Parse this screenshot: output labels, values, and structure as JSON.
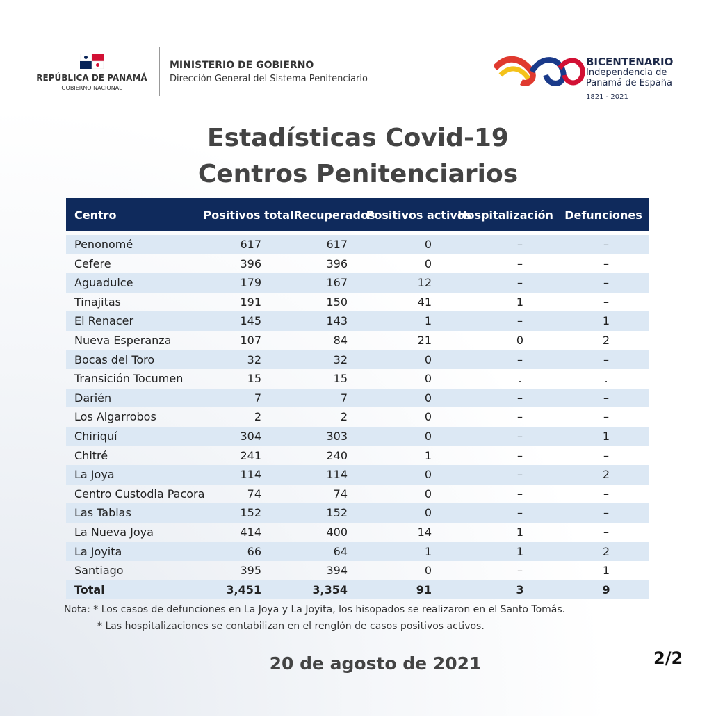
{
  "header": {
    "left_logo": {
      "country": "REPÚBLICA DE PANAMÁ",
      "government": "GOBIERNO NACIONAL"
    },
    "ministry": "MINISTERIO DE GOBIERNO",
    "department": "Dirección General del Sistema Penitenciario",
    "right_logo": {
      "title": "BICENTENARIO",
      "line1": "Independencia de",
      "line2": "Panamá de España",
      "years": "1821 - 2021"
    }
  },
  "title": [
    "Estadísticas Covid-19",
    "Centros Penitenciarios"
  ],
  "table": {
    "columns": [
      "Centro",
      "Positivos total",
      "Recuperados",
      "Positivos activos",
      "Hospitalización",
      "Defunciones"
    ],
    "rows": [
      [
        "Penonomé",
        617,
        617,
        0,
        "–",
        "–"
      ],
      [
        "Cefere",
        396,
        396,
        0,
        "–",
        "–"
      ],
      [
        "Aguadulce",
        179,
        167,
        12,
        "–",
        "–"
      ],
      [
        "Tinajitas",
        191,
        150,
        41,
        1,
        "–"
      ],
      [
        "El Renacer",
        145,
        143,
        1,
        "–",
        1
      ],
      [
        "Nueva Esperanza",
        107,
        84,
        21,
        0,
        2
      ],
      [
        "Bocas del Toro",
        32,
        32,
        0,
        "–",
        "–"
      ],
      [
        "Transición Tocumen",
        15,
        15,
        0,
        ".",
        "."
      ],
      [
        "Darién",
        7,
        7,
        0,
        "–",
        "–"
      ],
      [
        "Los Algarrobos",
        2,
        2,
        0,
        "–",
        "–"
      ],
      [
        "Chiriquí",
        304,
        303,
        0,
        "–",
        1
      ],
      [
        "Chitré",
        241,
        240,
        1,
        "–",
        "–"
      ],
      [
        "La Joya",
        114,
        114,
        0,
        "–",
        2
      ],
      [
        "Centro Custodia Pacora",
        74,
        74,
        0,
        "–",
        "–"
      ],
      [
        "Las Tablas",
        152,
        152,
        0,
        "–",
        "–"
      ],
      [
        "La Nueva Joya",
        414,
        400,
        14,
        1,
        "–"
      ],
      [
        "La Joyita",
        66,
        64,
        1,
        1,
        2
      ],
      [
        "Santiago",
        395,
        394,
        0,
        "–",
        1
      ]
    ],
    "total": [
      "Total",
      "3,451",
      "3,354",
      91,
      3,
      9
    ]
  },
  "notes": [
    "Nota: * Los casos de defunciones en La Joya y La Joyita, los hisopados se realizaron en el Santo Tomás.",
    "* Las hospitalizaciones se contabilizan en el renglón de casos positivos activos."
  ],
  "date": "20 de agosto de 2021",
  "page": "2/2"
}
